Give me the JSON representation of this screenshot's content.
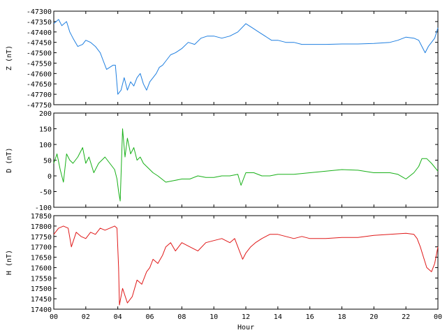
{
  "chart_data": [
    {
      "type": "line",
      "ylabel": "Z (nT)",
      "ylim": [
        -47750,
        -47300
      ],
      "yticks": [
        -47300,
        -47350,
        -47400,
        -47450,
        -47500,
        -47550,
        -47600,
        -47650,
        -47700,
        -47750
      ],
      "color": "#1f7fe0",
      "grid": false,
      "series": [
        {
          "x": [
            0,
            0.3,
            0.5,
            0.8,
            1.0,
            1.2,
            1.5,
            1.8,
            2.0,
            2.3,
            2.6,
            2.9,
            3.1,
            3.3,
            3.5,
            3.7,
            3.85,
            4.0,
            4.2,
            4.4,
            4.6,
            4.8,
            5.0,
            5.2,
            5.4,
            5.6,
            5.8,
            6.0,
            6.2,
            6.4,
            6.6,
            6.8,
            7.0,
            7.3,
            7.6,
            8.0,
            8.4,
            8.8,
            9.2,
            9.6,
            10.0,
            10.5,
            11.0,
            11.5,
            12.0,
            12.4,
            12.8,
            13.2,
            13.6,
            14.0,
            14.5,
            15.0,
            15.5,
            16.0,
            17.0,
            18.0,
            19.0,
            20.0,
            21.0,
            21.5,
            22.0,
            22.5,
            22.8,
            23.0,
            23.2,
            23.4,
            23.6,
            23.8,
            24.0
          ],
          "y": [
            -47360,
            -47340,
            -47370,
            -47350,
            -47400,
            -47430,
            -47470,
            -47460,
            -47440,
            -47450,
            -47470,
            -47500,
            -47540,
            -47580,
            -47570,
            -47560,
            -47560,
            -47700,
            -47680,
            -47620,
            -47680,
            -47640,
            -47660,
            -47620,
            -47600,
            -47650,
            -47680,
            -47640,
            -47620,
            -47600,
            -47570,
            -47560,
            -47540,
            -47510,
            -47500,
            -47480,
            -47450,
            -47460,
            -47430,
            -47420,
            -47420,
            -47430,
            -47420,
            -47400,
            -47360,
            -47380,
            -47400,
            -47420,
            -47440,
            -47440,
            -47450,
            -47450,
            -47460,
            -47460,
            -47460,
            -47458,
            -47458,
            -47455,
            -47450,
            -47440,
            -47425,
            -47430,
            -47440,
            -47470,
            -47500,
            -47470,
            -47450,
            -47430,
            -47380
          ]
        }
      ]
    },
    {
      "type": "line",
      "ylabel": "D (nT)",
      "ylim": [
        -100,
        200
      ],
      "yticks": [
        200,
        150,
        100,
        50,
        0,
        -50,
        -100
      ],
      "color": "#18b018",
      "grid": false,
      "series": [
        {
          "x": [
            0,
            0.2,
            0.4,
            0.6,
            0.8,
            1.0,
            1.2,
            1.5,
            1.8,
            2.0,
            2.2,
            2.5,
            2.8,
            3.0,
            3.2,
            3.5,
            3.8,
            3.95,
            4.05,
            4.15,
            4.3,
            4.45,
            4.6,
            4.8,
            5.0,
            5.2,
            5.4,
            5.6,
            5.8,
            6.0,
            6.2,
            6.5,
            7.0,
            7.5,
            8.0,
            8.5,
            9.0,
            9.5,
            10.0,
            10.5,
            11.0,
            11.5,
            11.7,
            12.0,
            12.5,
            13.0,
            13.5,
            14.0,
            15.0,
            16.0,
            17.0,
            18.0,
            19.0,
            20.0,
            21.0,
            21.5,
            22.0,
            22.5,
            22.8,
            23.0,
            23.3,
            23.6,
            24.0
          ],
          "y": [
            40,
            70,
            20,
            -20,
            70,
            50,
            40,
            60,
            90,
            40,
            60,
            10,
            40,
            50,
            60,
            40,
            20,
            -10,
            -50,
            -80,
            150,
            60,
            120,
            70,
            90,
            50,
            60,
            40,
            30,
            20,
            10,
            0,
            -20,
            -15,
            -10,
            -10,
            0,
            -5,
            -5,
            0,
            0,
            5,
            -30,
            10,
            10,
            0,
            0,
            5,
            5,
            10,
            15,
            20,
            18,
            10,
            10,
            5,
            -10,
            10,
            30,
            55,
            55,
            40,
            15
          ]
        }
      ]
    },
    {
      "type": "line",
      "ylabel": "H (nT)",
      "xlabel": "Hour",
      "ylim": [
        17400,
        17850
      ],
      "yticks": [
        17850,
        17800,
        17750,
        17700,
        17650,
        17600,
        17550,
        17500,
        17450,
        17400
      ],
      "xlim": [
        0,
        24
      ],
      "xticks": [
        "00",
        "02",
        "04",
        "06",
        "08",
        "10",
        "12",
        "14",
        "16",
        "18",
        "20",
        "22",
        "00"
      ],
      "color": "#e01818",
      "grid": false,
      "series": [
        {
          "x": [
            0,
            0.3,
            0.6,
            0.9,
            1.1,
            1.4,
            1.7,
            2.0,
            2.3,
            2.6,
            2.9,
            3.2,
            3.5,
            3.8,
            3.95,
            4.05,
            4.1,
            4.3,
            4.6,
            4.9,
            5.2,
            5.5,
            5.8,
            6.0,
            6.2,
            6.5,
            6.8,
            7.0,
            7.3,
            7.6,
            8.0,
            8.5,
            9.0,
            9.5,
            10.0,
            10.5,
            11.0,
            11.3,
            11.6,
            11.8,
            12.0,
            12.3,
            12.6,
            13.0,
            13.5,
            14.0,
            14.5,
            15.0,
            15.5,
            16.0,
            17.0,
            18.0,
            19.0,
            20.0,
            21.0,
            22.0,
            22.5,
            22.7,
            22.9,
            23.1,
            23.3,
            23.6,
            23.8,
            24.0
          ],
          "y": [
            17760,
            17790,
            17800,
            17790,
            17700,
            17770,
            17750,
            17740,
            17770,
            17760,
            17790,
            17780,
            17790,
            17800,
            17790,
            17600,
            17420,
            17500,
            17430,
            17460,
            17540,
            17520,
            17580,
            17600,
            17640,
            17620,
            17660,
            17700,
            17720,
            17680,
            17720,
            17700,
            17680,
            17720,
            17730,
            17740,
            17720,
            17740,
            17680,
            17640,
            17670,
            17700,
            17720,
            17740,
            17760,
            17760,
            17750,
            17740,
            17750,
            17740,
            17740,
            17745,
            17745,
            17755,
            17760,
            17765,
            17760,
            17740,
            17700,
            17650,
            17600,
            17580,
            17620,
            17700
          ]
        }
      ]
    }
  ]
}
